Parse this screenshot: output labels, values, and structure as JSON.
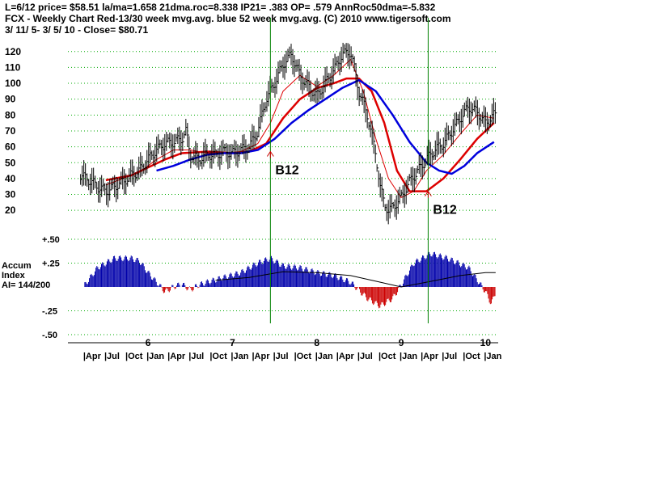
{
  "header": {
    "line1": "L=6/12  price= $58.51  la/ma=1.658 21dma.roc=8.338 IP21= .383 OP= .579 AnnRoc50dma=-5.832",
    "line2": "FCX  - Weekly Chart  Red-13/30 week mvg.avg.  blue 52 week mvg.avg.  (C) 2010 www.tigersoft.com",
    "line3": " 3/ 11/ 5- 3/ 5/ 10 -     Close= $80.71"
  },
  "colors": {
    "price_bar": "#000000",
    "ma13": "#dd0000",
    "ma30": "#dd0000",
    "ma52": "#0000dd",
    "accum_positive": "#0000aa",
    "accum_negative": "#cc0000",
    "signal_line": "#008000",
    "grid": "#00aa00",
    "accum_avg": "#000000"
  },
  "chart_data": [
    {
      "type": "line",
      "panel": "price",
      "y_ticks": [
        20,
        30,
        40,
        50,
        60,
        70,
        80,
        90,
        100,
        110,
        120
      ],
      "ylim": [
        15,
        127
      ],
      "grid": true,
      "price_series": [
        [
          2005.2,
          42
        ],
        [
          2005.3,
          39
        ],
        [
          2005.4,
          35
        ],
        [
          2005.5,
          32
        ],
        [
          2005.6,
          35
        ],
        [
          2005.7,
          38
        ],
        [
          2005.8,
          42
        ],
        [
          2005.9,
          45
        ],
        [
          2006.0,
          52
        ],
        [
          2006.1,
          58
        ],
        [
          2006.2,
          62
        ],
        [
          2006.3,
          63
        ],
        [
          2006.4,
          65
        ],
        [
          2006.45,
          70
        ],
        [
          2006.5,
          55
        ],
        [
          2006.6,
          52
        ],
        [
          2006.7,
          55
        ],
        [
          2006.8,
          55
        ],
        [
          2006.9,
          57
        ],
        [
          2007.0,
          56
        ],
        [
          2007.1,
          58
        ],
        [
          2007.2,
          60
        ],
        [
          2007.3,
          70
        ],
        [
          2007.4,
          90
        ],
        [
          2007.5,
          100
        ],
        [
          2007.6,
          112
        ],
        [
          2007.7,
          118
        ],
        [
          2007.8,
          105
        ],
        [
          2007.9,
          98
        ],
        [
          2008.0,
          92
        ],
        [
          2008.1,
          100
        ],
        [
          2008.2,
          108
        ],
        [
          2008.3,
          118
        ],
        [
          2008.4,
          120
        ],
        [
          2008.45,
          108
        ],
        [
          2008.5,
          95
        ],
        [
          2008.6,
          80
        ],
        [
          2008.7,
          55
        ],
        [
          2008.75,
          35
        ],
        [
          2008.8,
          24
        ],
        [
          2008.85,
          20
        ],
        [
          2008.9,
          22
        ],
        [
          2009.0,
          28
        ],
        [
          2009.1,
          38
        ],
        [
          2009.2,
          45
        ],
        [
          2009.3,
          52
        ],
        [
          2009.4,
          58
        ],
        [
          2009.5,
          62
        ],
        [
          2009.6,
          70
        ],
        [
          2009.7,
          78
        ],
        [
          2009.8,
          85
        ],
        [
          2009.9,
          82
        ],
        [
          2010.0,
          75
        ],
        [
          2010.1,
          80
        ]
      ],
      "ma13": [
        [
          2005.5,
          36
        ],
        [
          2005.7,
          40
        ],
        [
          2005.9,
          44
        ],
        [
          2006.1,
          52
        ],
        [
          2006.3,
          58
        ],
        [
          2006.5,
          58
        ],
        [
          2006.7,
          56
        ],
        [
          2006.9,
          56
        ],
        [
          2007.1,
          57
        ],
        [
          2007.3,
          62
        ],
        [
          2007.45,
          75
        ],
        [
          2007.6,
          95
        ],
        [
          2007.8,
          105
        ],
        [
          2008.0,
          98
        ],
        [
          2008.2,
          105
        ],
        [
          2008.4,
          115
        ],
        [
          2008.55,
          95
        ],
        [
          2008.7,
          65
        ],
        [
          2008.85,
          40
        ],
        [
          2009.0,
          28
        ],
        [
          2009.15,
          32
        ],
        [
          2009.3,
          45
        ],
        [
          2009.5,
          55
        ],
        [
          2009.7,
          68
        ],
        [
          2009.9,
          80
        ],
        [
          2010.1,
          78
        ]
      ],
      "ma30": [
        [
          2005.5,
          39
        ],
        [
          2005.8,
          42
        ],
        [
          2006.0,
          47
        ],
        [
          2006.2,
          52
        ],
        [
          2006.4,
          56
        ],
        [
          2006.7,
          57
        ],
        [
          2007.0,
          56
        ],
        [
          2007.2,
          57
        ],
        [
          2007.4,
          62
        ],
        [
          2007.6,
          78
        ],
        [
          2007.8,
          90
        ],
        [
          2008.0,
          97
        ],
        [
          2008.2,
          100
        ],
        [
          2008.35,
          103
        ],
        [
          2008.5,
          103
        ],
        [
          2008.65,
          95
        ],
        [
          2008.8,
          75
        ],
        [
          2008.95,
          45
        ],
        [
          2009.1,
          32
        ],
        [
          2009.3,
          32
        ],
        [
          2009.5,
          40
        ],
        [
          2009.7,
          52
        ],
        [
          2009.9,
          65
        ],
        [
          2010.1,
          75
        ]
      ],
      "ma52": [
        [
          2006.1,
          45
        ],
        [
          2006.3,
          48
        ],
        [
          2006.5,
          52
        ],
        [
          2006.7,
          55
        ],
        [
          2006.9,
          56
        ],
        [
          2007.1,
          56
        ],
        [
          2007.3,
          58
        ],
        [
          2007.5,
          65
        ],
        [
          2007.7,
          75
        ],
        [
          2007.9,
          83
        ],
        [
          2008.1,
          90
        ],
        [
          2008.3,
          97
        ],
        [
          2008.5,
          102
        ],
        [
          2008.7,
          95
        ],
        [
          2008.9,
          80
        ],
        [
          2009.1,
          63
        ],
        [
          2009.3,
          50
        ],
        [
          2009.45,
          45
        ],
        [
          2009.6,
          43
        ],
        [
          2009.75,
          48
        ],
        [
          2009.9,
          56
        ],
        [
          2010.1,
          63
        ]
      ],
      "signals": [
        {
          "label": "B12",
          "x": 2007.45,
          "y": 57
        },
        {
          "label": "B12",
          "x": 2009.32,
          "y": 32
        }
      ]
    },
    {
      "type": "bar",
      "panel": "accum",
      "title_lines": [
        "Accum",
        "Index",
        "AI= 144/200"
      ],
      "y_ticks": [
        {
          "label": "+.50",
          "value": 0.5
        },
        {
          "label": "+.25",
          "value": 0.25
        },
        {
          "label": "-.25",
          "value": -0.25
        },
        {
          "label": "-.50",
          "value": -0.5
        }
      ],
      "ylim": [
        -0.5,
        0.5
      ],
      "accum_series": [
        [
          2005.25,
          0.02
        ],
        [
          2005.4,
          0.2
        ],
        [
          2005.6,
          0.3
        ],
        [
          2005.8,
          0.3
        ],
        [
          2005.9,
          0.27
        ],
        [
          2006.0,
          0.15
        ],
        [
          2006.1,
          0.05
        ],
        [
          2006.2,
          -0.05
        ],
        [
          2006.3,
          0.0
        ],
        [
          2006.4,
          0.03
        ],
        [
          2006.5,
          -0.03
        ],
        [
          2006.6,
          0.02
        ],
        [
          2006.7,
          0.05
        ],
        [
          2006.9,
          0.1
        ],
        [
          2007.1,
          0.15
        ],
        [
          2007.3,
          0.25
        ],
        [
          2007.45,
          0.3
        ],
        [
          2007.6,
          0.22
        ],
        [
          2007.8,
          0.2
        ],
        [
          2008.0,
          0.15
        ],
        [
          2008.2,
          0.12
        ],
        [
          2008.4,
          0.05
        ],
        [
          2008.6,
          -0.12
        ],
        [
          2008.75,
          -0.2
        ],
        [
          2008.9,
          -0.12
        ],
        [
          2009.0,
          0.02
        ],
        [
          2009.15,
          0.25
        ],
        [
          2009.35,
          0.35
        ],
        [
          2009.55,
          0.3
        ],
        [
          2009.8,
          0.2
        ],
        [
          2010.0,
          -0.05
        ],
        [
          2010.07,
          -0.18
        ],
        [
          2010.12,
          -0.05
        ]
      ],
      "accum_avg": [
        [
          2006.8,
          0.07
        ],
        [
          2007.2,
          0.1
        ],
        [
          2007.6,
          0.16
        ],
        [
          2008.0,
          0.15
        ],
        [
          2008.4,
          0.12
        ],
        [
          2008.7,
          0.06
        ],
        [
          2009.0,
          0.0
        ],
        [
          2009.3,
          0.05
        ],
        [
          2009.7,
          0.12
        ],
        [
          2010.0,
          0.15
        ],
        [
          2010.12,
          0.15
        ]
      ]
    }
  ],
  "x_axis": {
    "range": [
      2005.05,
      2010.15
    ],
    "year_labels": [
      {
        "label": "6",
        "x": 2006.0
      },
      {
        "label": "7",
        "x": 2007.0
      },
      {
        "label": "8",
        "x": 2008.0
      },
      {
        "label": "9",
        "x": 2009.0
      },
      {
        "label": "10",
        "x": 2010.0
      }
    ],
    "month_labels": [
      {
        "label": "|Apr",
        "x": 2005.25
      },
      {
        "label": "|Jul",
        "x": 2005.5
      },
      {
        "label": "|Oct",
        "x": 2005.75
      },
      {
        "label": "|Jan",
        "x": 2006.0
      },
      {
        "label": "|Apr",
        "x": 2006.25
      },
      {
        "label": "|Jul",
        "x": 2006.5
      },
      {
        "label": "|Oct",
        "x": 2006.75
      },
      {
        "label": "|Jan",
        "x": 2007.0
      },
      {
        "label": "|Apr",
        "x": 2007.25
      },
      {
        "label": "|Jul",
        "x": 2007.5
      },
      {
        "label": "|Oct",
        "x": 2007.75
      },
      {
        "label": "|Jan",
        "x": 2008.0
      },
      {
        "label": "|Apr",
        "x": 2008.25
      },
      {
        "label": "|Jul",
        "x": 2008.5
      },
      {
        "label": "|Oct",
        "x": 2008.75
      },
      {
        "label": "|Jan",
        "x": 2009.0
      },
      {
        "label": "|Apr",
        "x": 2009.25
      },
      {
        "label": "|Jul",
        "x": 2009.5
      },
      {
        "label": "|Oct",
        "x": 2009.75
      },
      {
        "label": "|Jan",
        "x": 2010.0
      }
    ],
    "signal_lines_x": [
      2007.45,
      2009.32
    ]
  }
}
